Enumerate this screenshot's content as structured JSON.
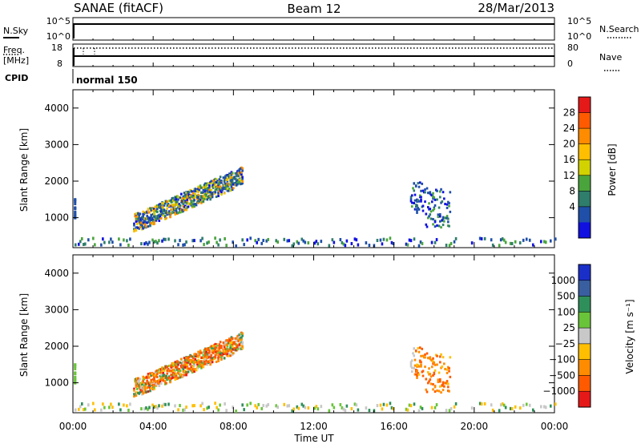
{
  "header": {
    "radar": "SANAE (fitACF)",
    "beam": "Beam 12",
    "date": "28/Mar/2013"
  },
  "strips": {
    "nsky_label": "N.Sky",
    "nsky_ticks": [
      "10^5",
      "10^0"
    ],
    "nsearch_label": "N.Search",
    "nsearch_ticks": [
      "10^5",
      "10^0"
    ],
    "freq_label": "Freq.",
    "freq_unit": "[MHz]",
    "freq_ticks": [
      "18",
      "8"
    ],
    "nave_label": "Nave",
    "nave_ticks": [
      "80",
      "0"
    ],
    "cpid_label": "CPID",
    "cpid_value": "normal 150"
  },
  "power_scale": {
    "title": "Power [dB]",
    "ticks": [
      "28",
      "24",
      "20",
      "16",
      "12",
      "8",
      "4"
    ],
    "colors": [
      "#e61919",
      "#ff5a00",
      "#ff8c00",
      "#ffbf00",
      "#d2d200",
      "#4aa43c",
      "#2f7d6b",
      "#1f4fa8",
      "#1010e0"
    ]
  },
  "velocity_scale": {
    "title": "Velocity [m s⁻¹]",
    "ticks": [
      "1000",
      "500",
      "100",
      "25",
      "−25",
      "−100",
      "−500",
      "−1000"
    ],
    "colors": [
      "#1a2fc8",
      "#3a5fa0",
      "#2f8f5a",
      "#6ac43a",
      "#c8c8c8",
      "#ffbf00",
      "#ff8c00",
      "#ff5a00",
      "#e61919"
    ]
  },
  "chart_data": [
    {
      "type": "heatmap",
      "panel": "power",
      "ylabel": "Slant Range [km]",
      "xlabel": "",
      "ylim": [
        180,
        4500
      ],
      "yticks": [
        1000,
        2000,
        3000,
        4000
      ],
      "xlim": [
        0,
        24
      ],
      "xticks": [
        "00:00",
        "04:00",
        "08:00",
        "12:00",
        "16:00",
        "20:00",
        "00:00"
      ],
      "features": [
        {
          "name": "main band",
          "t": [
            3.0,
            8.4
          ],
          "range_km": [
            800,
            2100
          ],
          "value_db": [
            4,
            24
          ]
        },
        {
          "name": "dusk echoes",
          "t": [
            16.8,
            18.8
          ],
          "range_km": [
            700,
            2000
          ],
          "value_db": [
            4,
            16
          ]
        },
        {
          "name": "near range",
          "t": [
            0,
            24
          ],
          "range_km": [
            180,
            400
          ],
          "value_db": [
            4,
            12
          ]
        }
      ]
    },
    {
      "type": "heatmap",
      "panel": "velocity",
      "ylabel": "Slant Range [km]",
      "xlabel": "Time UT",
      "ylim": [
        180,
        4500
      ],
      "yticks": [
        1000,
        2000,
        3000,
        4000
      ],
      "xlim": [
        0,
        24
      ],
      "xticks": [
        "00:00",
        "04:00",
        "08:00",
        "12:00",
        "16:00",
        "20:00",
        "00:00"
      ],
      "features": [
        {
          "name": "main band",
          "t": [
            3.0,
            8.4
          ],
          "range_km": [
            800,
            2100
          ],
          "value_ms": [
            -500,
            100
          ]
        },
        {
          "name": "dusk echoes",
          "t": [
            16.8,
            18.8
          ],
          "range_km": [
            700,
            2000
          ],
          "value_ms": [
            -500,
            25
          ]
        },
        {
          "name": "near range",
          "t": [
            0,
            24
          ],
          "range_km": [
            180,
            400
          ],
          "value_ms": [
            -25,
            100
          ]
        }
      ]
    }
  ]
}
